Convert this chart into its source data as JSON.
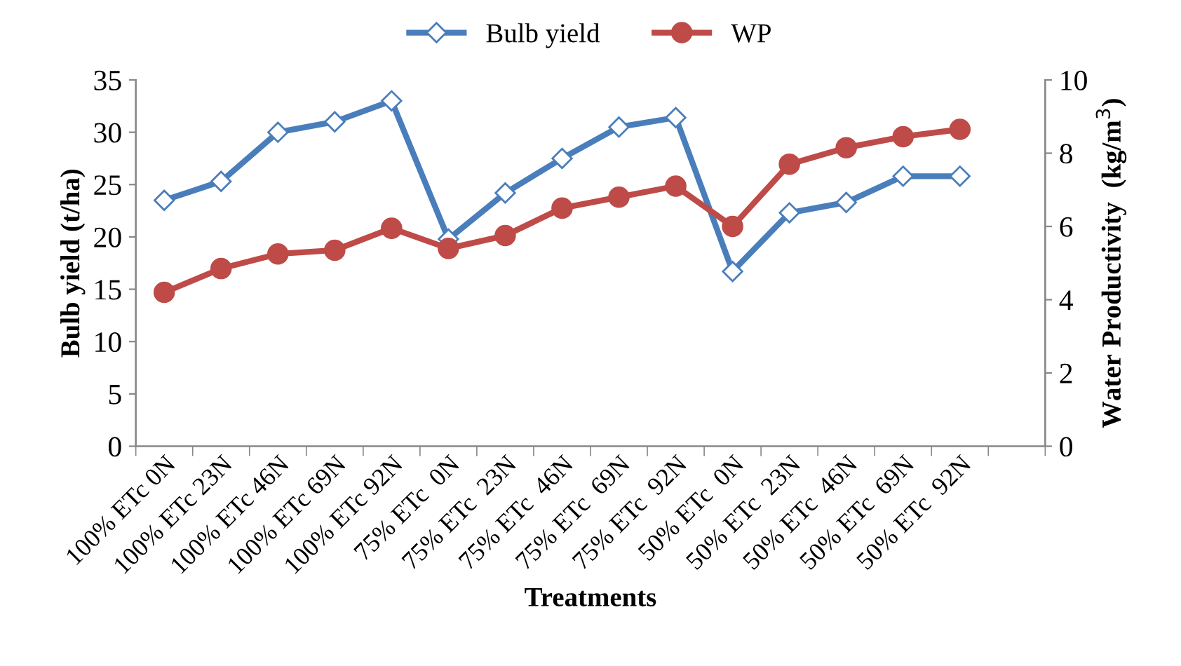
{
  "chart_data": {
    "type": "line",
    "xlabel": "Treatments",
    "ylabel": "Bulb yield (t/ha)",
    "y2label": "Water Productivity  (kg/m$^{3}$)",
    "categories": [
      "100% ETc 0N",
      "100% ETc 23N",
      "100% ETc 46N",
      "100% ETc 69N",
      "100% ETc 92N",
      "75% ETc  0N",
      "75% ETc  23N",
      "75% ETc  46N",
      "75% ETc  69N",
      "75% ETc  92N",
      "50% ETc  0N",
      "50% ETc  23N",
      "50% ETc  46N",
      "50% ETc  69N",
      "50% ETc  92N",
      null
    ],
    "series": [
      {
        "name": "Bulb yield",
        "color": "#4a7ebb",
        "marker": "diamond",
        "values": [
          23.5,
          25.3,
          30,
          31,
          33,
          19.8,
          24.2,
          27.5,
          30.5,
          31.4,
          16.7,
          22.3,
          23.3,
          25.8,
          25.8,
          null
        ]
      },
      {
        "name": "WP",
        "color": "#be4b48",
        "marker": "circle",
        "axis": "y2",
        "values": [
          4.2,
          4.85,
          5.25,
          5.35,
          5.95,
          5.4,
          5.75,
          6.5,
          6.8,
          7.1,
          6.0,
          7.7,
          8.15,
          8.45,
          8.65,
          null
        ]
      }
    ],
    "ylim": [
      0,
      35
    ],
    "yticks": [
      0,
      5,
      10,
      15,
      20,
      25,
      30,
      35
    ],
    "y2lim": [
      0,
      10
    ],
    "y2ticks": [
      0,
      2,
      4,
      6,
      8,
      10
    ],
    "legend": "top",
    "grid": false
  }
}
